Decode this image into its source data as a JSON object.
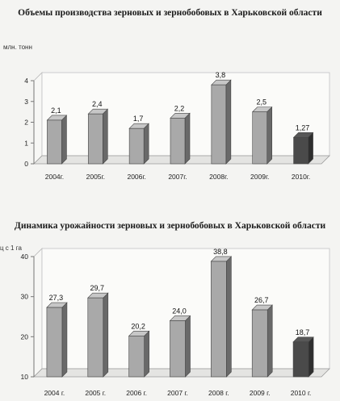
{
  "chart_data": [
    {
      "type": "bar",
      "title": "Объемы производства зерновых и зернобобовых в Харьковской области",
      "ylabel": "млн. тонн",
      "categories": [
        "2004г.",
        "2005г.",
        "2006г.",
        "2007г.",
        "2008г.",
        "2009г.",
        "2010г."
      ],
      "values": [
        2.1,
        2.4,
        1.7,
        2.2,
        3.8,
        2.5,
        1.27
      ],
      "value_labels": [
        "2,1",
        "2,4",
        "1,7",
        "2,2",
        "3,8",
        "2,5",
        "1,27"
      ],
      "yticks": [
        0,
        1,
        2,
        3,
        4
      ],
      "ylim": [
        0,
        4
      ],
      "grid": false,
      "colors": {
        "bar": "#a9a9a9",
        "highlight": "#4a4a4a"
      },
      "highlight_index": 6
    },
    {
      "type": "bar",
      "title": "Динамика урожайности зерновых и зернобобовых в Харьковской области",
      "ylabel": "ц с 1 га",
      "categories": [
        "2004 г.",
        "2005 г.",
        "2006 г.",
        "2007 г.",
        "2008 г.",
        "2009 г.",
        "2010 г."
      ],
      "values": [
        27.3,
        29.7,
        20.2,
        24.0,
        38.8,
        26.7,
        18.7
      ],
      "value_labels": [
        "27,3",
        "29,7",
        "20,2",
        "24,0",
        "38,8",
        "26,7",
        "18,7"
      ],
      "yticks": [
        10,
        20,
        30,
        40
      ],
      "ylim": [
        10,
        40
      ],
      "grid": false,
      "colors": {
        "bar": "#a9a9a9",
        "highlight": "#4a4a4a"
      },
      "highlight_index": 6
    }
  ]
}
